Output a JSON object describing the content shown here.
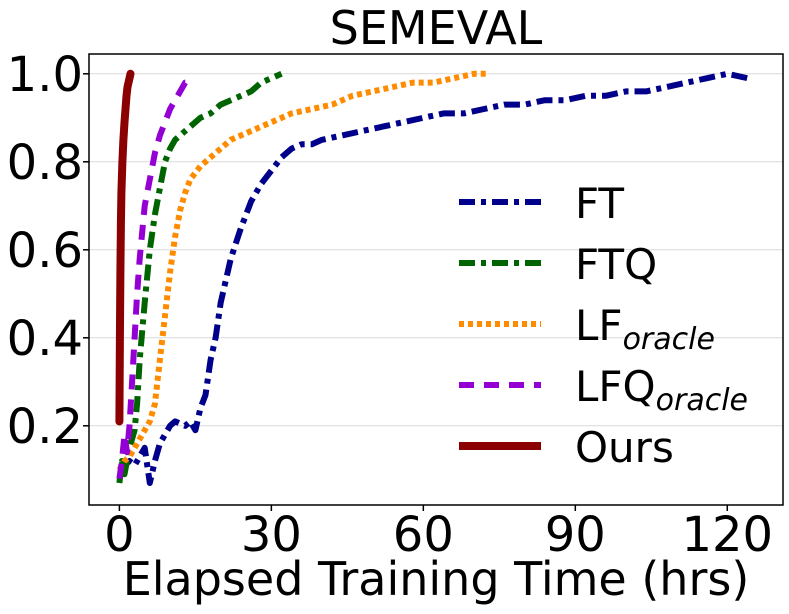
{
  "chart_data": {
    "type": "line",
    "title": "SEMEVAL",
    "xlabel": "Elapsed Training Time (hrs)",
    "ylabel": "",
    "xlim": [
      -6,
      131
    ],
    "ylim": [
      0.02,
      1.045
    ],
    "xticks": [
      0,
      30,
      60,
      90,
      120
    ],
    "yticks": [
      0.2,
      0.4,
      0.6,
      0.8,
      1.0
    ],
    "xtick_labels": [
      "0",
      "30",
      "60",
      "90",
      "120"
    ],
    "ytick_labels": [
      "0.2",
      "0.4",
      "0.6",
      "0.8",
      "1.0"
    ],
    "grid": "horizontal",
    "legend_position": "right",
    "series": [
      {
        "name": "FT",
        "name_main": "FT",
        "name_sub": "",
        "color": "#00008b",
        "style": "dashdot",
        "x": [
          0,
          2,
          3,
          4,
          5,
          6,
          7,
          8,
          9,
          10,
          11,
          13,
          14,
          15,
          16,
          17,
          18,
          19,
          20,
          22,
          24,
          26,
          28,
          30,
          32,
          34,
          36,
          38,
          40,
          44,
          48,
          52,
          56,
          60,
          64,
          68,
          72,
          76,
          80,
          84,
          88,
          92,
          96,
          100,
          104,
          108,
          112,
          116,
          120,
          124
        ],
        "y": [
          0.1,
          0.12,
          0.11,
          0.13,
          0.15,
          0.07,
          0.12,
          0.16,
          0.18,
          0.2,
          0.21,
          0.2,
          0.21,
          0.19,
          0.24,
          0.27,
          0.35,
          0.4,
          0.48,
          0.58,
          0.65,
          0.71,
          0.75,
          0.78,
          0.81,
          0.83,
          0.84,
          0.84,
          0.85,
          0.86,
          0.87,
          0.88,
          0.89,
          0.9,
          0.91,
          0.91,
          0.92,
          0.93,
          0.93,
          0.94,
          0.94,
          0.95,
          0.95,
          0.96,
          0.96,
          0.97,
          0.98,
          0.99,
          1.0,
          0.99
        ]
      },
      {
        "name": "FTQ",
        "name_main": "FTQ",
        "name_sub": "",
        "color": "#006400",
        "style": "dashdot",
        "x": [
          0,
          0.5,
          1,
          2,
          3,
          3.5,
          4,
          5,
          6,
          7,
          8,
          9,
          10,
          11,
          12,
          14,
          16,
          18,
          20,
          22,
          24,
          26,
          28,
          30,
          32
        ],
        "y": [
          0.07,
          0.12,
          0.09,
          0.15,
          0.19,
          0.25,
          0.35,
          0.48,
          0.6,
          0.68,
          0.74,
          0.8,
          0.83,
          0.85,
          0.86,
          0.88,
          0.9,
          0.91,
          0.93,
          0.94,
          0.95,
          0.96,
          0.98,
          0.99,
          1.0
        ]
      },
      {
        "name": "LForacle",
        "name_main": "LF",
        "name_sub": "oracle",
        "color": "#ff8c00",
        "style": "dotted",
        "x": [
          0,
          1,
          2,
          3,
          4,
          5,
          6,
          7,
          8,
          9,
          10,
          11,
          12,
          13,
          14,
          16,
          18,
          20,
          22,
          24,
          26,
          28,
          30,
          34,
          38,
          42,
          46,
          50,
          54,
          58,
          62,
          66,
          70,
          73
        ],
        "y": [
          0.1,
          0.12,
          0.13,
          0.15,
          0.17,
          0.19,
          0.21,
          0.25,
          0.35,
          0.45,
          0.55,
          0.63,
          0.69,
          0.73,
          0.76,
          0.79,
          0.81,
          0.83,
          0.85,
          0.86,
          0.87,
          0.88,
          0.89,
          0.91,
          0.92,
          0.93,
          0.95,
          0.96,
          0.97,
          0.98,
          0.98,
          0.99,
          1.0,
          1.0
        ]
      },
      {
        "name": "LFQoracle",
        "name_main": "LFQ",
        "name_sub": "oracle",
        "color": "#9400d3",
        "style": "dashed",
        "x": [
          0,
          0.5,
          1,
          1.5,
          2,
          2.5,
          3,
          3.5,
          4,
          4.5,
          5,
          6,
          7,
          8,
          9,
          10,
          11,
          12,
          13,
          14
        ],
        "y": [
          0.08,
          0.12,
          0.18,
          0.14,
          0.2,
          0.3,
          0.4,
          0.5,
          0.58,
          0.64,
          0.7,
          0.76,
          0.82,
          0.86,
          0.89,
          0.92,
          0.94,
          0.96,
          0.98,
          0.98
        ]
      },
      {
        "name": "Ours",
        "name_main": "Ours",
        "name_sub": "",
        "color": "#8b0000",
        "style": "solid",
        "x": [
          0,
          0.1,
          0.2,
          0.3,
          0.4,
          0.6,
          0.8,
          1.0,
          1.2,
          1.4,
          1.6,
          1.8,
          2.0,
          2.2
        ],
        "y": [
          0.21,
          0.4,
          0.55,
          0.66,
          0.73,
          0.8,
          0.85,
          0.89,
          0.92,
          0.95,
          0.97,
          0.98,
          0.99,
          1.0
        ]
      }
    ]
  }
}
